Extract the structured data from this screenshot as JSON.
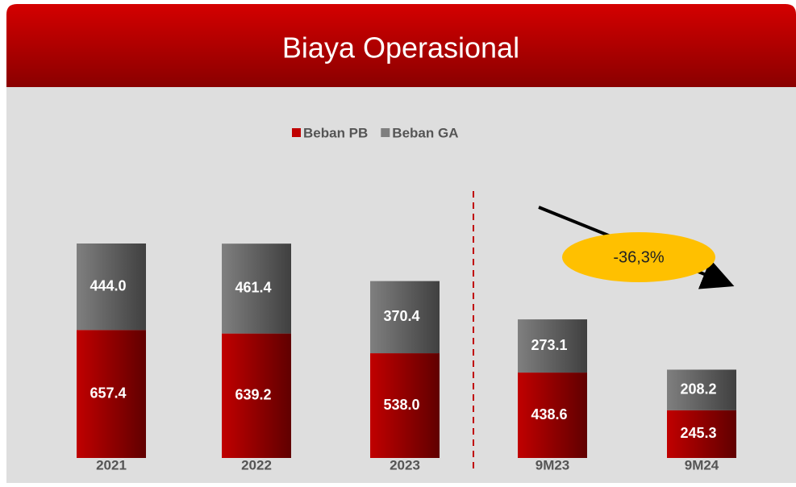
{
  "chart_data": {
    "type": "stacked-bar",
    "title": "Biaya Operasional",
    "categories": [
      "2021",
      "2022",
      "2023",
      "9M23",
      "9M24"
    ],
    "series": [
      {
        "name": "Beban PB",
        "color": "#c00000",
        "values": [
          657.4,
          639.2,
          538.0,
          438.6,
          245.3
        ],
        "value_labels": [
          "657.4",
          "639.2",
          "538.0",
          "438.6",
          "245.3"
        ]
      },
      {
        "name": "Beban GA",
        "color": "#7f7f7f",
        "values": [
          444.0,
          461.4,
          370.4,
          273.1,
          208.2
        ],
        "value_labels": [
          "444.0",
          "461.4",
          "370.4",
          "273.1",
          "208.2"
        ]
      }
    ],
    "annotation": "-36,3%"
  }
}
